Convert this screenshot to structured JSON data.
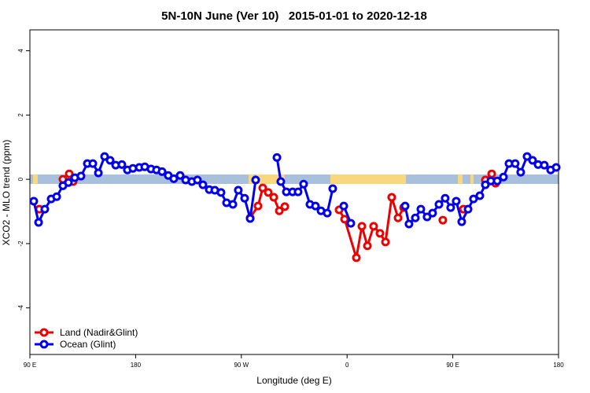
{
  "chart_data": {
    "type": "line",
    "title": "5N-10N June (Ver 10)   2015-01-01 to 2020-12-18",
    "xlabel": "Longitude (deg E)",
    "ylabel": "XCO2 - MLO trend (ppm)",
    "xlim": [
      90,
      540
    ],
    "xticks": [
      {
        "value": 90,
        "label": "90 E"
      },
      180,
      {
        "value": 270,
        "label": "90 W"
      },
      {
        "value": 360,
        "label": "0"
      },
      {
        "value": 450,
        "label": "90 E"
      },
      {
        "value": 540,
        "label": "180"
      }
    ],
    "ylim": [
      -5.45,
      4.65
    ],
    "yticks": [
      -4,
      -2,
      0,
      2,
      4
    ],
    "legend": "bottomleft",
    "series": [
      {
        "name": "Land (Nadir&Glint)",
        "color": "#ee0000",
        "x": [
          98.0,
          null,
          118.1,
          123.5,
          126.8,
          null,
          277.5,
          284.2,
          288.2,
          292.9,
          297.6,
          302.3,
          307.0,
          null,
          353.2,
          357.9,
          367.9,
          372.6,
          377.3,
          382.6,
          388.0,
          392.7,
          398.0,
          403.4,
          408.1,
          null,
          441.5,
          null,
          459.0,
          null,
          477.7,
          483.1,
          486.4
        ],
        "values": [
          -0.93,
          null,
          0.0,
          0.17,
          -0.07,
          null,
          -1.2,
          -0.83,
          -0.27,
          -0.41,
          -0.56,
          -0.98,
          -0.85,
          null,
          -0.95,
          -1.24,
          -2.44,
          -1.46,
          -2.07,
          -1.46,
          -1.68,
          -1.95,
          -0.56,
          -1.2,
          -0.88,
          null,
          -1.27,
          null,
          -0.93,
          null,
          -0.02,
          0.17,
          -0.12
        ]
      },
      {
        "name": "Ocean (Glint)",
        "color": "#0000ee",
        "x": [
          93.3,
          97.4,
          102.7,
          108.1,
          112.8,
          118.1,
          122.8,
          128.2,
          133.5,
          138.9,
          143.6,
          148.3,
          153.6,
          158.3,
          163.0,
          168.3,
          173.0,
          177.7,
          183.1,
          187.8,
          193.1,
          197.8,
          202.5,
          207.8,
          212.5,
          217.9,
          222.6,
          227.9,
          232.6,
          237.3,
          242.7,
          247.4,
          252.7,
          257.4,
          262.8,
          267.4,
          272.8,
          277.5,
          282.2,
          null,
          300.3,
          303.6,
          308.3,
          313.6,
          318.3,
          323.0,
          328.4,
          333.1,
          337.8,
          343.1,
          347.8,
          null,
          357.2,
          363.2,
          null,
          409.4,
          412.7,
          418.1,
          422.8,
          428.1,
          432.8,
          438.2,
          443.5,
          448.2,
          452.9,
          457.6,
          463.0,
          467.6,
          473.0,
          477.7,
          482.4,
          487.8,
          493.1,
          497.8,
          503.1,
          507.8,
          513.2,
          517.9,
          522.6,
          527.9,
          533.3,
          538.0
        ],
        "values": [
          -0.68,
          -1.34,
          -0.93,
          -0.61,
          -0.54,
          -0.2,
          -0.1,
          0.05,
          0.1,
          0.49,
          0.49,
          0.2,
          0.71,
          0.59,
          0.44,
          0.46,
          0.29,
          0.34,
          0.37,
          0.39,
          0.32,
          0.29,
          0.24,
          0.12,
          0.02,
          0.12,
          -0.02,
          -0.07,
          -0.02,
          -0.17,
          -0.32,
          -0.34,
          -0.41,
          -0.73,
          -0.78,
          -0.34,
          -0.59,
          -1.22,
          -0.02,
          null,
          0.68,
          -0.07,
          -0.39,
          -0.39,
          -0.39,
          -0.15,
          -0.78,
          -0.83,
          -0.98,
          -1.05,
          -0.29,
          null,
          -0.83,
          -1.37,
          null,
          -0.83,
          -1.39,
          -1.2,
          -0.93,
          -1.17,
          -1.05,
          -0.78,
          -0.59,
          -0.88,
          -0.68,
          -1.32,
          -0.93,
          -0.61,
          -0.51,
          -0.17,
          -0.05,
          -0.05,
          0.07,
          0.49,
          0.49,
          0.22,
          0.71,
          0.59,
          0.46,
          0.44,
          0.29,
          0.37
        ]
      }
    ]
  }
}
